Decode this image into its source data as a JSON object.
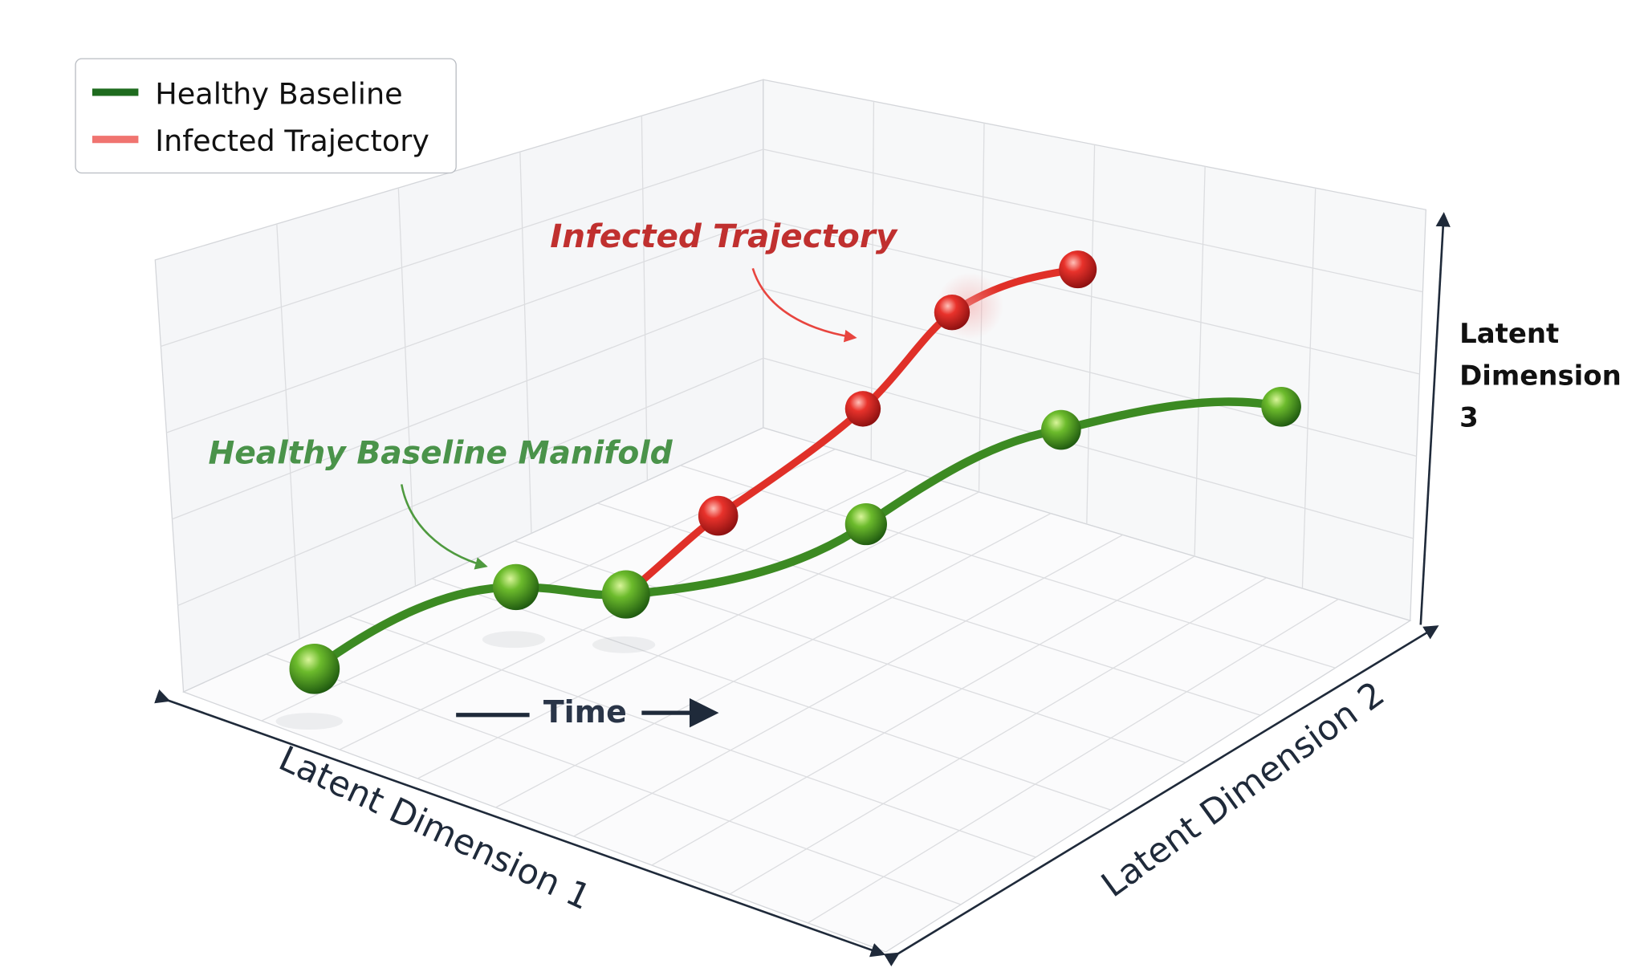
{
  "legend": {
    "items": [
      {
        "label": "Healthy Baseline",
        "color": "#1e6b1e"
      },
      {
        "label": "Infected Trajectory",
        "color": "#f07470"
      }
    ]
  },
  "annotations": {
    "infected": "Infected Trajectory",
    "healthy": "Healthy Baseline Manifold",
    "time": "Time"
  },
  "axes": {
    "x": "Latent Dimension 1",
    "y": "Latent Dimension 2",
    "z": [
      "Latent",
      "Dimension",
      "3"
    ]
  }
}
